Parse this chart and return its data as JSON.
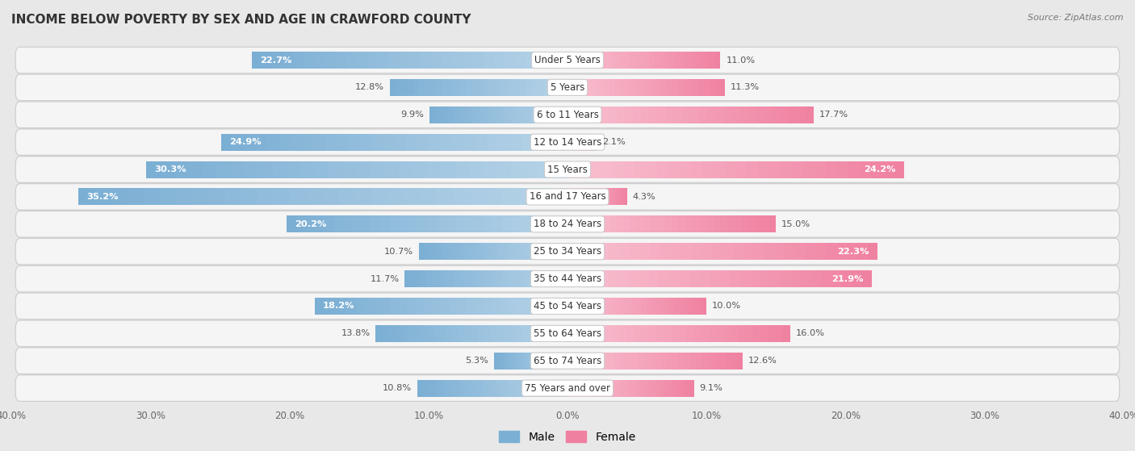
{
  "title": "INCOME BELOW POVERTY BY SEX AND AGE IN CRAWFORD COUNTY",
  "source": "Source: ZipAtlas.com",
  "categories": [
    "Under 5 Years",
    "5 Years",
    "6 to 11 Years",
    "12 to 14 Years",
    "15 Years",
    "16 and 17 Years",
    "18 to 24 Years",
    "25 to 34 Years",
    "35 to 44 Years",
    "45 to 54 Years",
    "55 to 64 Years",
    "65 to 74 Years",
    "75 Years and over"
  ],
  "male": [
    22.7,
    12.8,
    9.9,
    24.9,
    30.3,
    35.2,
    20.2,
    10.7,
    11.7,
    18.2,
    13.8,
    5.3,
    10.8
  ],
  "female": [
    11.0,
    11.3,
    17.7,
    2.1,
    24.2,
    4.3,
    15.0,
    22.3,
    21.9,
    10.0,
    16.0,
    12.6,
    9.1
  ],
  "male_color": "#7bafd4",
  "male_color_light": "#b8d4e8",
  "female_color": "#f080a0",
  "female_color_light": "#f8c0d0",
  "background_color": "#e8e8e8",
  "row_bg_color": "#f5f5f5",
  "row_bg_color_alt": "#ebebeb",
  "xlim": 40.0,
  "bar_height": 0.62,
  "legend_male": "Male",
  "legend_female": "Female",
  "label_threshold": 18
}
